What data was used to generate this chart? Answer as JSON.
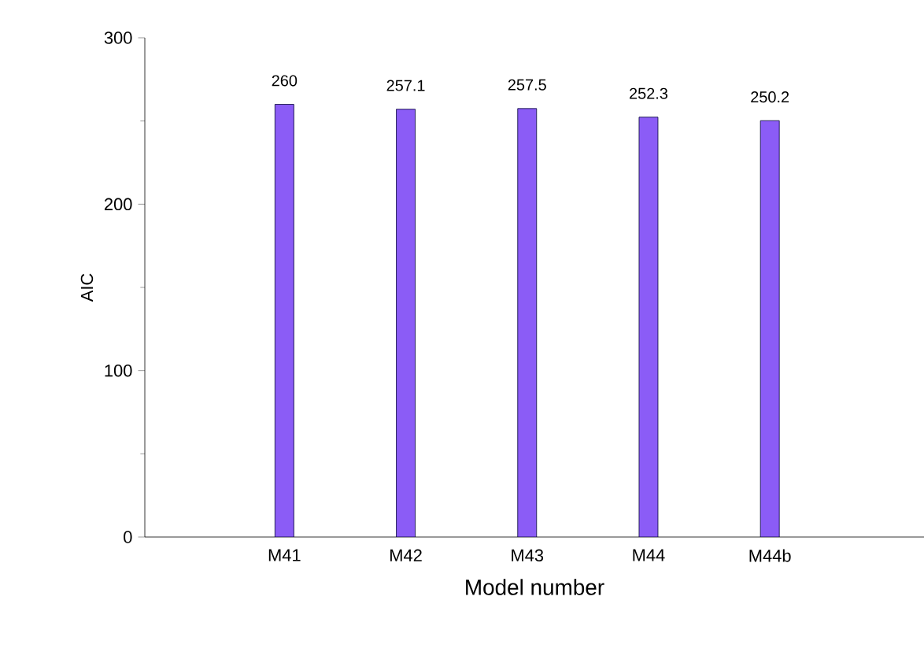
{
  "chart_data": {
    "type": "bar",
    "xlabel": "Model number",
    "ylabel": "AIC",
    "categories": [
      "M41",
      "M42",
      "M43",
      "M44",
      "M44b"
    ],
    "values": [
      260,
      257.1,
      257.5,
      252.3,
      250.2
    ],
    "color": "#8b5cf6",
    "ylim": [
      0,
      300
    ],
    "yticks": [
      0,
      100,
      200,
      300
    ],
    "data_labels": true,
    "grid": false
  }
}
